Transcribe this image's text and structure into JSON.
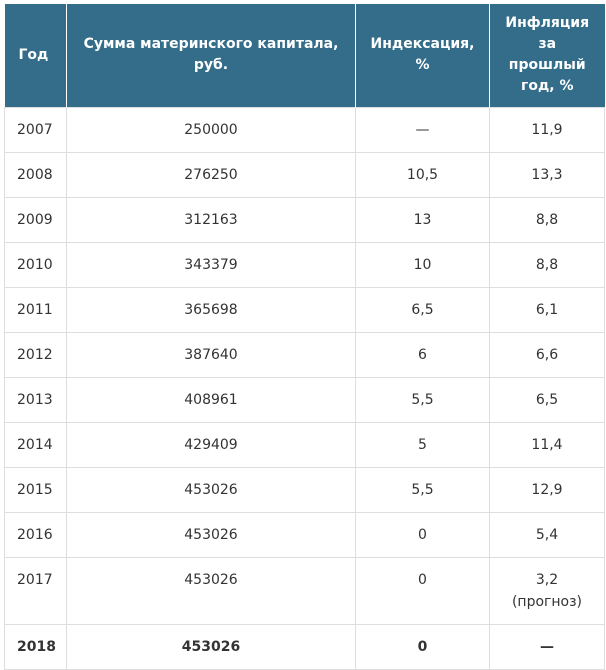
{
  "table": {
    "header": [
      "Год",
      "Сумма материнского капитала, руб.",
      "Индексация, %",
      "Инфляция за прошлый год, %"
    ],
    "rows": [
      [
        "2007",
        "250000",
        "—",
        "11,9"
      ],
      [
        "2008",
        "276250",
        "10,5",
        "13,3"
      ],
      [
        "2009",
        "312163",
        "13",
        "8,8"
      ],
      [
        "2010",
        "343379",
        "10",
        "8,8"
      ],
      [
        "2011",
        "365698",
        "6,5",
        "6,1"
      ],
      [
        "2012",
        "387640",
        "6",
        "6,6"
      ],
      [
        "2013",
        "408961",
        "5,5",
        "6,5"
      ],
      [
        "2014",
        "429409",
        "5",
        "11,4"
      ],
      [
        "2015",
        "453026",
        "5,5",
        "12,9"
      ],
      [
        "2016",
        "453026",
        "0",
        "5,4"
      ],
      [
        "2017",
        "453026",
        "0",
        "3,2"
      ],
      [
        "2018",
        "453026",
        "0",
        "—"
      ]
    ],
    "forecast_note": "(прогноз)"
  }
}
